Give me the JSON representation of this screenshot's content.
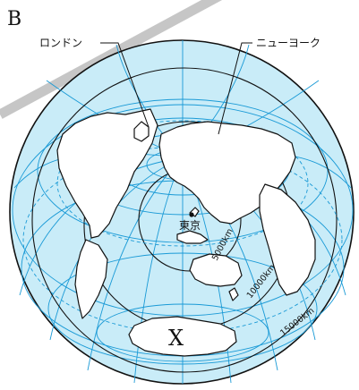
{
  "map": {
    "panel_label": "B",
    "labels": {
      "london": "ロンドン",
      "newyork": "ニューヨーク",
      "tokyo": "東京",
      "antarctica": "X"
    },
    "distance_labels": [
      "5000km",
      "10000km",
      "15000km"
    ],
    "colors": {
      "ocean": "#c9ecf8",
      "graticule": "#1a9ad6",
      "land": "#ffffff",
      "outline": "#111111",
      "stripe": "#c6c6c6"
    }
  }
}
